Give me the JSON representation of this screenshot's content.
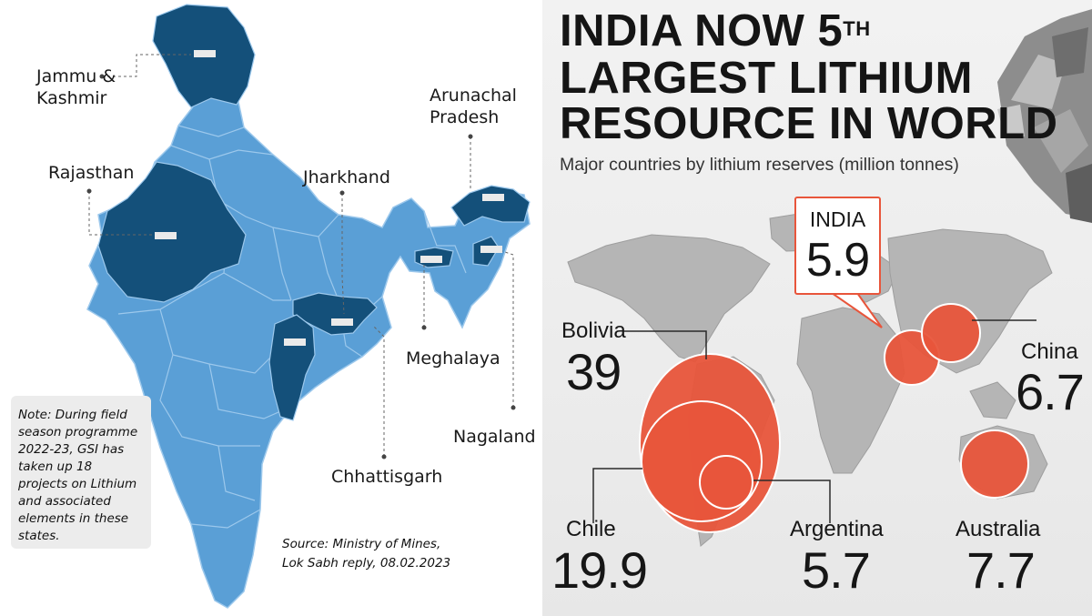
{
  "india_map": {
    "states": {
      "jammu_kashmir": "Jammu &\nKashmir",
      "rajasthan": "Rajasthan",
      "jharkhand": "Jharkhand",
      "arunachal_pradesh": "Arunachal\nPradesh",
      "meghalaya": "Meghalaya",
      "nagaland": "Nagaland",
      "chhattisgarh": "Chhattisgarh"
    },
    "highlight_color": "#14507a",
    "base_color": "#5a9fd6",
    "border_color": "#9cc8ec",
    "note": "Note: During field season programme 2022-23, GSI has taken up 18 projects on Lithium and associated elements in these states.",
    "source": "Source: Ministry of Mines, Lok Sabh reply, 08.02.2023"
  },
  "infographic": {
    "title_line1": "INDIA NOW 5",
    "title_sup": "TH",
    "title_line2": "LARGEST LITHIUM",
    "title_line3": "RESOURCE IN WORLD",
    "subtitle": "Major countries by lithium reserves (million tonnes)",
    "bubble_color": "#e8553b",
    "land_color": "#b5b5b5",
    "india_label": "INDIA",
    "india_value": "5.9",
    "countries": {
      "bolivia": {
        "name": "Bolivia",
        "value": "39"
      },
      "chile": {
        "name": "Chile",
        "value": "19.9"
      },
      "argentina": {
        "name": "Argentina",
        "value": "5.7"
      },
      "australia": {
        "name": "Australia",
        "value": "7.7"
      },
      "china": {
        "name": "China",
        "value": "6.7"
      }
    }
  }
}
